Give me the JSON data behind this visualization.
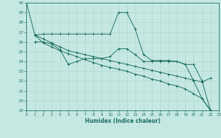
{
  "xlabel": "Humidex (Indice chaleur)",
  "ylim": [
    19,
    30
  ],
  "xlim": [
    0,
    23
  ],
  "yticks": [
    19,
    20,
    21,
    22,
    23,
    24,
    25,
    26,
    27,
    28,
    29,
    30
  ],
  "xticks": [
    0,
    1,
    2,
    3,
    4,
    5,
    6,
    7,
    8,
    9,
    10,
    11,
    12,
    13,
    14,
    15,
    16,
    17,
    18,
    19,
    20,
    21,
    22,
    23
  ],
  "bg_color": "#c5e8e2",
  "line_color": "#1a6e63",
  "grid_color": "#b0d8d0",
  "lines": [
    {
      "comment": "zigzag line: starts at 30, drops to 27 at x=1, flat ~26.8 to x=10, peaks ~29 at x=11-12, drops to ~27.3 at x=13, ~24.7 x=14, then ~24.1-24.0 x=15-18, ~23.7 x=19, drops to 22 x=20, 20.2 x=21, 19 x=22",
      "x": [
        0,
        1,
        2,
        3,
        4,
        5,
        6,
        7,
        8,
        9,
        10,
        11,
        12,
        13,
        14,
        15,
        16,
        17,
        18,
        19,
        20,
        21,
        22
      ],
      "y": [
        30,
        26.7,
        26.8,
        26.8,
        26.8,
        26.8,
        26.8,
        26.8,
        26.8,
        26.8,
        26.8,
        29.0,
        29.0,
        27.3,
        24.7,
        24.1,
        24.1,
        24.1,
        24.0,
        23.7,
        22.0,
        20.2,
        19.0
      ]
    },
    {
      "comment": "line with markers at x=2,5,7,8,10,11,13,14,17,18,20,21,22: from ~26 at x=2, drops to ~23.7 at x=5, rises to ~24.3 at x=7-8, then ~24.3 at x=10, ~24.3 at x=11, dip ~24.7 x=13, then ~24 x=14, ~24 x=17-18, then ~23.7 x=20, 22 x=21, 19 x=22",
      "x": [
        1,
        2,
        3,
        4,
        5,
        6,
        7,
        8,
        9,
        10,
        11,
        12,
        13,
        14,
        15,
        16,
        17,
        18,
        19,
        20,
        21,
        22
      ],
      "y": [
        26.0,
        26.0,
        25.8,
        25.2,
        23.7,
        24.0,
        24.3,
        24.3,
        24.3,
        24.5,
        25.3,
        25.3,
        24.7,
        24.0,
        24.0,
        24.0,
        24.0,
        24.0,
        23.7,
        23.7,
        22.0,
        19.0
      ]
    },
    {
      "x": [
        1,
        2,
        3,
        4,
        5,
        6,
        7,
        8,
        9,
        10,
        11,
        12,
        13,
        14,
        15,
        16,
        17,
        18,
        19,
        20,
        21,
        22
      ],
      "y": [
        26.7,
        26.3,
        25.9,
        25.5,
        25.1,
        24.9,
        24.7,
        24.5,
        24.3,
        24.1,
        23.9,
        23.7,
        23.5,
        23.3,
        23.1,
        22.9,
        22.7,
        22.5,
        22.3,
        22.1,
        21.9,
        22.3
      ]
    },
    {
      "x": [
        1,
        2,
        3,
        4,
        5,
        6,
        7,
        8,
        9,
        10,
        11,
        12,
        13,
        14,
        15,
        16,
        17,
        18,
        19,
        20,
        21,
        22
      ],
      "y": [
        26.7,
        25.9,
        25.5,
        25.1,
        24.8,
        24.5,
        24.2,
        23.9,
        23.6,
        23.4,
        23.2,
        23.0,
        22.7,
        22.5,
        22.2,
        22.0,
        21.7,
        21.5,
        21.2,
        20.7,
        20.2,
        19.0
      ]
    }
  ]
}
